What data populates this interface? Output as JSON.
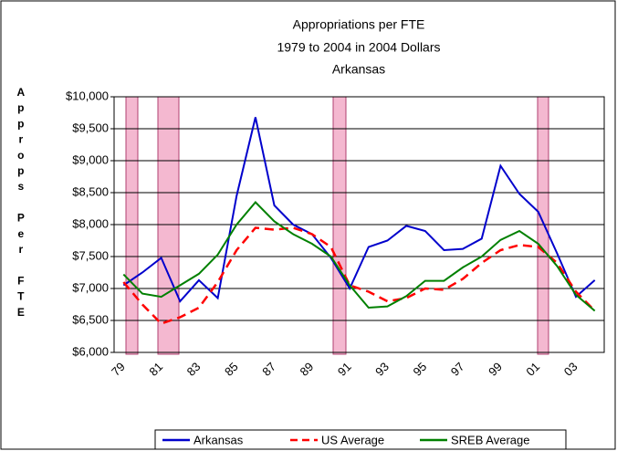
{
  "chart_data": {
    "type": "line",
    "title": [
      "Appropriations per FTE",
      "1979 to 2004 in 2004 Dollars",
      "Arkansas"
    ],
    "y_label": "Approps Per FTE",
    "categories": [
      "79",
      null,
      "81",
      null,
      "83",
      null,
      "85",
      null,
      "87",
      null,
      "89",
      null,
      "91",
      null,
      "93",
      null,
      "95",
      null,
      "97",
      null,
      "99",
      null,
      "01",
      null,
      "03",
      null
    ],
    "series": [
      {
        "name": "Arkansas",
        "color": "#0000cc",
        "dash": "solid",
        "values": [
          7050,
          7250,
          7480,
          6800,
          7130,
          6850,
          8450,
          9680,
          8300,
          8000,
          7850,
          7480,
          7000,
          7650,
          7750,
          7980,
          7900,
          7600,
          7620,
          7780,
          8920,
          8480,
          8200,
          7550,
          6870,
          7130
        ]
      },
      {
        "name": "US Average",
        "color": "#ff0000",
        "dash": "dashed",
        "values": [
          7100,
          6750,
          6450,
          6550,
          6700,
          7100,
          7600,
          7950,
          7920,
          7950,
          7850,
          7650,
          7050,
          6950,
          6800,
          6850,
          7000,
          6980,
          7150,
          7400,
          7600,
          7680,
          7650,
          7400,
          6950,
          6650
        ]
      },
      {
        "name": "SREB Average",
        "color": "#008000",
        "dash": "solid",
        "values": [
          7220,
          6920,
          6870,
          7050,
          7230,
          7530,
          8000,
          8350,
          8050,
          7850,
          7700,
          7500,
          7050,
          6700,
          6720,
          6880,
          7120,
          7120,
          7330,
          7500,
          7760,
          7900,
          7700,
          7350,
          6900,
          6650
        ]
      }
    ],
    "ylim": [
      6000,
      10000
    ],
    "yticks": [
      {
        "value": 6000,
        "label": "$6,000"
      },
      {
        "value": 6500,
        "label": "$6,500"
      },
      {
        "value": 7000,
        "label": "$7,000"
      },
      {
        "value": 7500,
        "label": "$7,500"
      },
      {
        "value": 8000,
        "label": "$8,000"
      },
      {
        "value": 8500,
        "label": "$8,500"
      },
      {
        "value": 9000,
        "label": "$9,000"
      },
      {
        "value": 9500,
        "label": "$9,500"
      },
      {
        "value": 10000,
        "label": "$10,000"
      }
    ],
    "grid": true,
    "legend": "bottom"
  }
}
